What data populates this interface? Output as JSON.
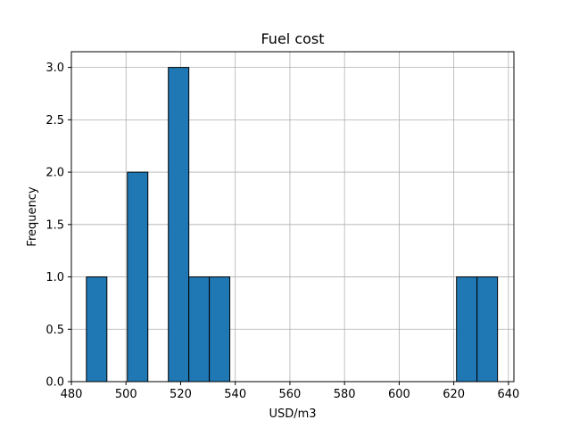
{
  "chart_data": {
    "type": "bar",
    "title": "Fuel cost",
    "xlabel": "USD/m3",
    "ylabel": "Frequency",
    "bin_width": 7.5,
    "bins": [
      {
        "x0": 485.5,
        "x1": 493.0,
        "count": 1
      },
      {
        "x0": 500.5,
        "x1": 508.0,
        "count": 2
      },
      {
        "x0": 515.5,
        "x1": 523.0,
        "count": 3
      },
      {
        "x0": 523.0,
        "x1": 530.5,
        "count": 1
      },
      {
        "x0": 530.5,
        "x1": 538.0,
        "count": 1
      },
      {
        "x0": 621.0,
        "x1": 628.5,
        "count": 1
      },
      {
        "x0": 628.5,
        "x1": 636.0,
        "count": 1
      }
    ],
    "xlim": [
      480,
      642
    ],
    "ylim": [
      0,
      3.15
    ],
    "xticks": [
      480,
      500,
      520,
      540,
      560,
      580,
      600,
      620,
      640
    ],
    "yticks": [
      "0.0",
      "0.5",
      "1.0",
      "1.5",
      "2.0",
      "2.5",
      "3.0"
    ],
    "grid": true,
    "bar_color": "#1f77b4",
    "edge_color": "#000000",
    "grid_color": "#b0b0b0"
  }
}
